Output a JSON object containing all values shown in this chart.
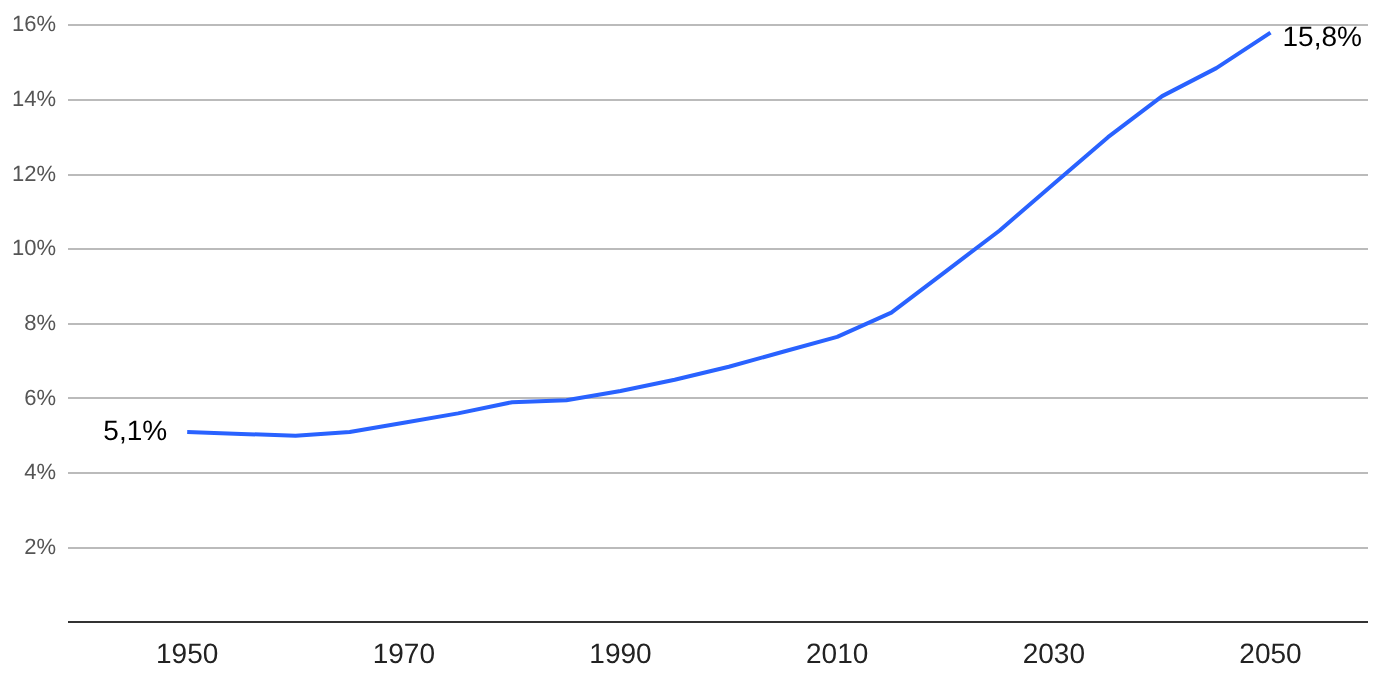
{
  "chart_data": {
    "type": "line",
    "x": [
      1950,
      1955,
      1960,
      1965,
      1970,
      1975,
      1980,
      1985,
      1990,
      1995,
      2000,
      2005,
      2010,
      2015,
      2020,
      2025,
      2030,
      2035,
      2040,
      2045,
      2050
    ],
    "series": [
      {
        "color": "#2962ff",
        "values": [
          5.1,
          5.05,
          5.0,
          5.1,
          5.35,
          5.6,
          5.9,
          5.95,
          6.2,
          6.5,
          6.85,
          7.25,
          7.65,
          8.3,
          9.4,
          10.5,
          11.75,
          13.0,
          14.1,
          14.85,
          15.8
        ],
        "value_labels": [
          "5,1%",
          null,
          null,
          null,
          null,
          null,
          null,
          null,
          null,
          null,
          null,
          null,
          null,
          null,
          null,
          null,
          null,
          null,
          null,
          null,
          "15,8%"
        ]
      }
    ],
    "xlim": [
      1939,
      2059
    ],
    "xticks": [
      1950,
      1970,
      1990,
      2010,
      2030,
      2050
    ],
    "ylim": [
      0,
      16
    ],
    "yticks": [
      {
        "value": 0,
        "label": null
      },
      {
        "value": 2,
        "label": "2%"
      },
      {
        "value": 4,
        "label": "4%"
      },
      {
        "value": 6,
        "label": "6%"
      },
      {
        "value": 8,
        "label": "8%"
      },
      {
        "value": 10,
        "label": "10%"
      },
      {
        "value": 12,
        "label": "12%"
      },
      {
        "value": 14,
        "label": "14%"
      },
      {
        "value": 16,
        "label": "16%"
      }
    ],
    "grid": "y",
    "legend": false,
    "marker": "none",
    "line_style": "solid"
  }
}
